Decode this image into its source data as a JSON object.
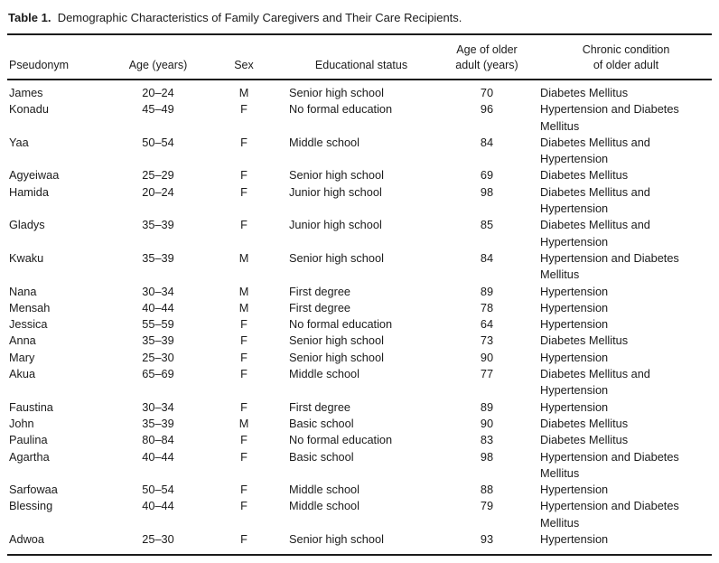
{
  "title": {
    "label": "Table 1.",
    "text": "Demographic Characteristics of Family Caregivers and Their Care Recipients."
  },
  "table": {
    "columns": [
      {
        "key": "pseudonym",
        "label": "Pseudonym"
      },
      {
        "key": "age",
        "label": "Age (years)"
      },
      {
        "key": "sex",
        "label": "Sex"
      },
      {
        "key": "education",
        "label": "Educational status"
      },
      {
        "key": "older_age",
        "label": "Age of older\nadult (years)"
      },
      {
        "key": "condition",
        "label": "Chronic condition\nof older adult"
      }
    ],
    "rows": [
      {
        "pseudonym": "James",
        "age": "20–24",
        "sex": "M",
        "education": "Senior high school",
        "older_age": "70",
        "condition": "Diabetes Mellitus"
      },
      {
        "pseudonym": "Konadu",
        "age": "45–49",
        "sex": "F",
        "education": "No formal education",
        "older_age": "96",
        "condition": "Hypertension and Diabetes Mellitus"
      },
      {
        "pseudonym": "Yaa",
        "age": "50–54",
        "sex": "F",
        "education": "Middle school",
        "older_age": "84",
        "condition": "Diabetes Mellitus and Hypertension"
      },
      {
        "pseudonym": "Agyeiwaa",
        "age": "25–29",
        "sex": "F",
        "education": "Senior high school",
        "older_age": "69",
        "condition": "Diabetes Mellitus"
      },
      {
        "pseudonym": "Hamida",
        "age": "20–24",
        "sex": "F",
        "education": "Junior high school",
        "older_age": "98",
        "condition": "Diabetes Mellitus and Hypertension"
      },
      {
        "pseudonym": "Gladys",
        "age": "35–39",
        "sex": "F",
        "education": "Junior high school",
        "older_age": "85",
        "condition": "Diabetes Mellitus and Hypertension"
      },
      {
        "pseudonym": "Kwaku",
        "age": "35–39",
        "sex": "M",
        "education": "Senior high school",
        "older_age": "84",
        "condition": "Hypertension and Diabetes Mellitus"
      },
      {
        "pseudonym": "Nana",
        "age": "30–34",
        "sex": "M",
        "education": "First degree",
        "older_age": "89",
        "condition": "Hypertension"
      },
      {
        "pseudonym": "Mensah",
        "age": "40–44",
        "sex": "M",
        "education": "First degree",
        "older_age": "78",
        "condition": "Hypertension"
      },
      {
        "pseudonym": "Jessica",
        "age": "55–59",
        "sex": "F",
        "education": "No formal education",
        "older_age": "64",
        "condition": "Hypertension"
      },
      {
        "pseudonym": "Anna",
        "age": "35–39",
        "sex": "F",
        "education": "Senior high school",
        "older_age": "73",
        "condition": "Diabetes Mellitus"
      },
      {
        "pseudonym": "Mary",
        "age": "25–30",
        "sex": "F",
        "education": "Senior high school",
        "older_age": "90",
        "condition": "Hypertension"
      },
      {
        "pseudonym": "Akua",
        "age": "65–69",
        "sex": "F",
        "education": "Middle school",
        "older_age": "77",
        "condition": "Diabetes Mellitus and Hypertension"
      },
      {
        "pseudonym": "Faustina",
        "age": "30–34",
        "sex": "F",
        "education": "First degree",
        "older_age": "89",
        "condition": "Hypertension"
      },
      {
        "pseudonym": "John",
        "age": "35–39",
        "sex": "M",
        "education": "Basic school",
        "older_age": "90",
        "condition": "Diabetes Mellitus"
      },
      {
        "pseudonym": "Paulina",
        "age": "80–84",
        "sex": "F",
        "education": "No formal education",
        "older_age": "83",
        "condition": "Diabetes Mellitus"
      },
      {
        "pseudonym": "Agartha",
        "age": "40–44",
        "sex": "F",
        "education": "Basic school",
        "older_age": "98",
        "condition": "Hypertension and Diabetes Mellitus"
      },
      {
        "pseudonym": "Sarfowaa",
        "age": "50–54",
        "sex": "F",
        "education": "Middle school",
        "older_age": "88",
        "condition": "Hypertension"
      },
      {
        "pseudonym": "Blessing",
        "age": "40–44",
        "sex": "F",
        "education": "Middle school",
        "older_age": "79",
        "condition": "Hypertension and Diabetes Mellitus"
      },
      {
        "pseudonym": "Adwoa",
        "age": "25–30",
        "sex": "F",
        "education": "Senior high school",
        "older_age": "93",
        "condition": "Hypertension"
      }
    ]
  }
}
